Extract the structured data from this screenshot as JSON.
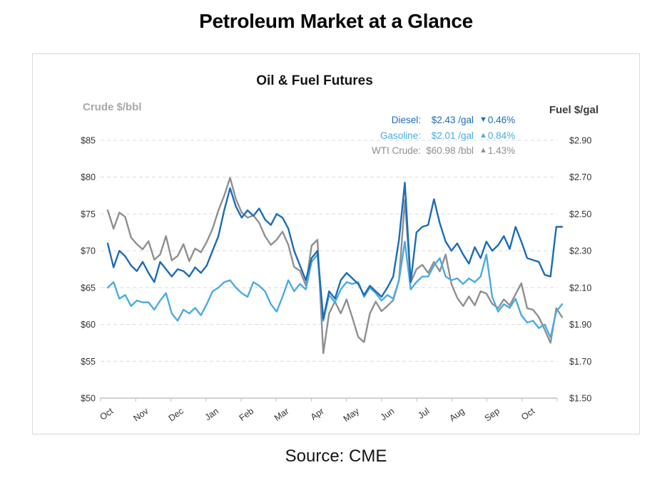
{
  "page": {
    "title": "Petroleum Market at a Glance",
    "source": "Source: CME",
    "background_color": "#ffffff"
  },
  "chart": {
    "title": "Oil & Fuel Futures",
    "left_axis_title": "Crude $/bbl",
    "right_axis_title": "Fuel $/gal"
  },
  "legend": {
    "items": [
      {
        "name": "diesel",
        "label": "Diesel:",
        "value": "$2.43 /gal",
        "arrow": "▼",
        "change": "0.46%",
        "direction": "down",
        "color": "#1b6cb8"
      },
      {
        "name": "gasoline",
        "label": "Gasoline:",
        "value": "$2.01 /gal",
        "arrow": "▲",
        "change": "0.84%",
        "direction": "up",
        "color": "#4aabe0"
      },
      {
        "name": "wti-crude",
        "label": "WTI Crude:",
        "value": "$60.98 /bbl",
        "arrow": "▲",
        "change": "1.43%",
        "direction": "up",
        "color": "#8f8f8f"
      }
    ]
  },
  "chart_data": {
    "type": "line",
    "title": "Oil & Fuel Futures",
    "x_categories": [
      "Oct",
      "Nov",
      "Dec",
      "Jan",
      "Feb",
      "Mar",
      "Apr",
      "May",
      "Jun",
      "Jul",
      "Aug",
      "Sep",
      "Oct"
    ],
    "points_per_month": 6,
    "grid": {
      "dashed": true,
      "color": "#d9d9d9",
      "axis_color": "#c0c0c0"
    },
    "left_axis": {
      "title": "Crude $/bbl",
      "min": 50,
      "max": 85,
      "step": 5,
      "tick_labels": [
        "$85",
        "$80",
        "$75",
        "$70",
        "$65",
        "$60",
        "$55",
        "$50"
      ]
    },
    "right_axis": {
      "title": "Fuel $/gal",
      "min": 1.5,
      "max": 2.9,
      "step": 0.2,
      "tick_labels": [
        "$2.90",
        "$2.70",
        "$2.50",
        "$2.30",
        "$2.10",
        "$1.90",
        "$1.70",
        "$1.50"
      ]
    },
    "series": [
      {
        "name": "WTI Crude",
        "axis": "left",
        "unit": "$/bbl",
        "color": "#8f8f8f",
        "last_value": 60.98,
        "values": [
          75.5,
          73.0,
          75.2,
          74.6,
          71.8,
          70.9,
          70.2,
          71.3,
          68.8,
          69.5,
          72.0,
          68.7,
          69.3,
          70.9,
          68.6,
          70.3,
          69.8,
          71.2,
          73.0,
          75.5,
          77.5,
          79.9,
          77.0,
          75.2,
          74.5,
          74.8,
          73.8,
          72.0,
          70.8,
          71.5,
          72.6,
          70.8,
          67.8,
          67.3,
          65.3,
          70.7,
          71.5,
          56.1,
          61.5,
          63.1,
          61.5,
          63.4,
          60.9,
          58.3,
          57.6,
          61.5,
          63.1,
          61.8,
          62.5,
          63.3,
          66.0,
          76.9,
          65.7,
          67.5,
          68.1,
          67.0,
          68.5,
          67.2,
          69.5,
          65.5,
          63.6,
          62.5,
          63.8,
          62.6,
          64.5,
          64.2,
          62.8,
          62.2,
          63.4,
          62.6,
          64.1,
          65.6,
          62.2,
          62.0,
          61.0,
          59.3,
          57.5,
          62.2,
          60.98
        ]
      },
      {
        "name": "Gasoline",
        "axis": "right",
        "unit": "$/gal",
        "color": "#4aabe0",
        "last_value": 2.01,
        "values": [
          2.1,
          2.13,
          2.04,
          2.06,
          2.0,
          2.03,
          2.02,
          2.02,
          1.98,
          2.03,
          2.07,
          1.96,
          1.92,
          1.98,
          1.96,
          1.99,
          1.95,
          2.01,
          2.08,
          2.1,
          2.13,
          2.14,
          2.1,
          2.07,
          2.05,
          2.13,
          2.11,
          2.08,
          2.01,
          1.97,
          2.05,
          2.14,
          2.08,
          2.12,
          2.09,
          2.24,
          2.28,
          1.92,
          2.06,
          2.02,
          2.09,
          2.13,
          2.12,
          2.13,
          2.05,
          2.1,
          2.07,
          2.03,
          2.06,
          2.04,
          2.14,
          2.35,
          2.09,
          2.13,
          2.16,
          2.16,
          2.22,
          2.26,
          2.16,
          2.14,
          2.15,
          2.12,
          2.15,
          2.13,
          2.16,
          2.28,
          2.05,
          1.97,
          2.01,
          1.99,
          2.04,
          1.95,
          1.91,
          1.92,
          1.88,
          1.9,
          1.83,
          1.97,
          2.01
        ]
      },
      {
        "name": "Diesel",
        "axis": "right",
        "unit": "$/gal",
        "color": "#1b6cb8",
        "last_value": 2.43,
        "values": [
          2.34,
          2.21,
          2.3,
          2.27,
          2.22,
          2.19,
          2.24,
          2.18,
          2.13,
          2.24,
          2.2,
          2.16,
          2.2,
          2.19,
          2.16,
          2.21,
          2.18,
          2.22,
          2.3,
          2.38,
          2.52,
          2.64,
          2.54,
          2.48,
          2.52,
          2.49,
          2.53,
          2.47,
          2.44,
          2.5,
          2.48,
          2.42,
          2.3,
          2.22,
          2.14,
          2.26,
          2.3,
          1.93,
          2.08,
          2.04,
          2.14,
          2.18,
          2.15,
          2.12,
          2.06,
          2.11,
          2.08,
          2.05,
          2.1,
          2.16,
          2.36,
          2.67,
          2.13,
          2.4,
          2.43,
          2.44,
          2.58,
          2.45,
          2.35,
          2.3,
          2.34,
          2.28,
          2.23,
          2.32,
          2.26,
          2.35,
          2.3,
          2.33,
          2.38,
          2.31,
          2.43,
          2.35,
          2.26,
          2.25,
          2.24,
          2.17,
          2.16,
          2.43,
          2.43
        ]
      }
    ]
  }
}
